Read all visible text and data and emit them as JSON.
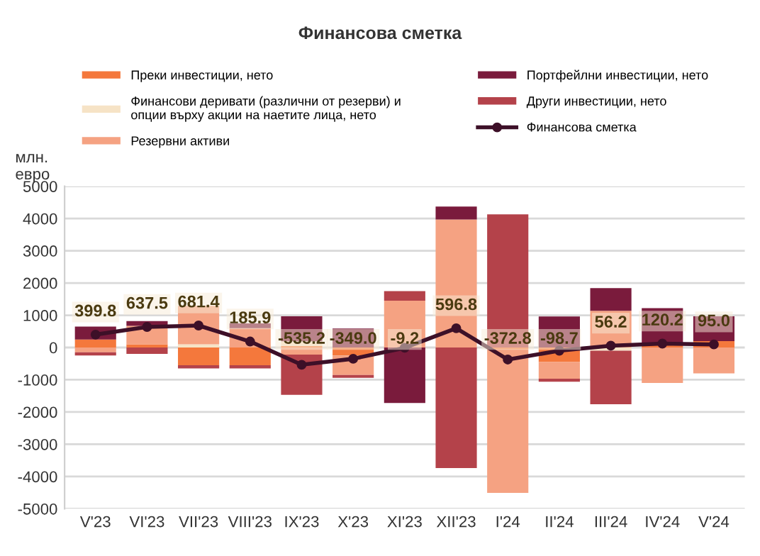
{
  "chart_data": {
    "type": "bar",
    "title": "Финансова сметка",
    "ylabel": "млн.\nевро",
    "stacked": true,
    "categories": [
      "V'23",
      "VI'23",
      "VII'23",
      "VIII'23",
      "IX'23",
      "X'23",
      "XI'23",
      "XII'23",
      "I'24",
      "II'24",
      "III'24",
      "IV'24",
      "V'24"
    ],
    "series": [
      {
        "name": "Преки инвестиции, нето",
        "color": "#f4783c",
        "values": [
          250,
          100,
          -550,
          -550,
          50,
          -250,
          0,
          0,
          -60,
          -450,
          0,
          70,
          200
        ]
      },
      {
        "name": "Финансови деривати (различни от резерви) и\nопции върху акции на наетите лица, нето",
        "color": "#f6e3c6",
        "values": [
          null,
          null,
          100,
          null,
          140,
          0,
          0,
          0,
          0,
          0,
          -100,
          0,
          0
        ]
      },
      {
        "name": "Резервни активи",
        "color": "#f5a282",
        "values": [
          -150,
          570,
          1190,
          600,
          -220,
          -600,
          1450,
          3970,
          -4450,
          -520,
          1140,
          -1100,
          -800
        ]
      },
      {
        "name": "Портфейлни инвестиции, нето",
        "color": "#7a1b3c",
        "values": [
          400,
          150,
          0,
          150,
          780,
          590,
          -1720,
          400,
          0,
          960,
          700,
          1150,
          770
        ]
      },
      {
        "name": "Други инвестиции, нето",
        "color": "#b4424a",
        "values": [
          -100,
          -200,
          -100,
          -100,
          -1250,
          -90,
          300,
          -3740,
          4130,
          -90,
          -1660,
          0,
          0
        ]
      },
      {
        "name": "Финансова сметка",
        "type": "line",
        "color": "#3d1028",
        "marker": "circle",
        "values": [
          399.8,
          637.5,
          681.4,
          185.9,
          -535.2,
          -349.0,
          -9.2,
          596.8,
          -372.8,
          -98.7,
          56.2,
          120.2,
          95.0
        ],
        "value_labels": [
          "399.8",
          "637.5",
          "681.4",
          "185.9",
          "-535.2",
          "-349.0",
          "-9.2",
          "596.8",
          "-372.8",
          "-98.7",
          "56.2",
          "120.2",
          "95.0"
        ]
      }
    ],
    "ylim": [
      -5000,
      5000
    ],
    "yticks": [
      -5000,
      -4000,
      -3000,
      -2000,
      -1000,
      0,
      1000,
      2000,
      3000,
      4000,
      5000
    ],
    "grid": "y",
    "legend": "top"
  }
}
